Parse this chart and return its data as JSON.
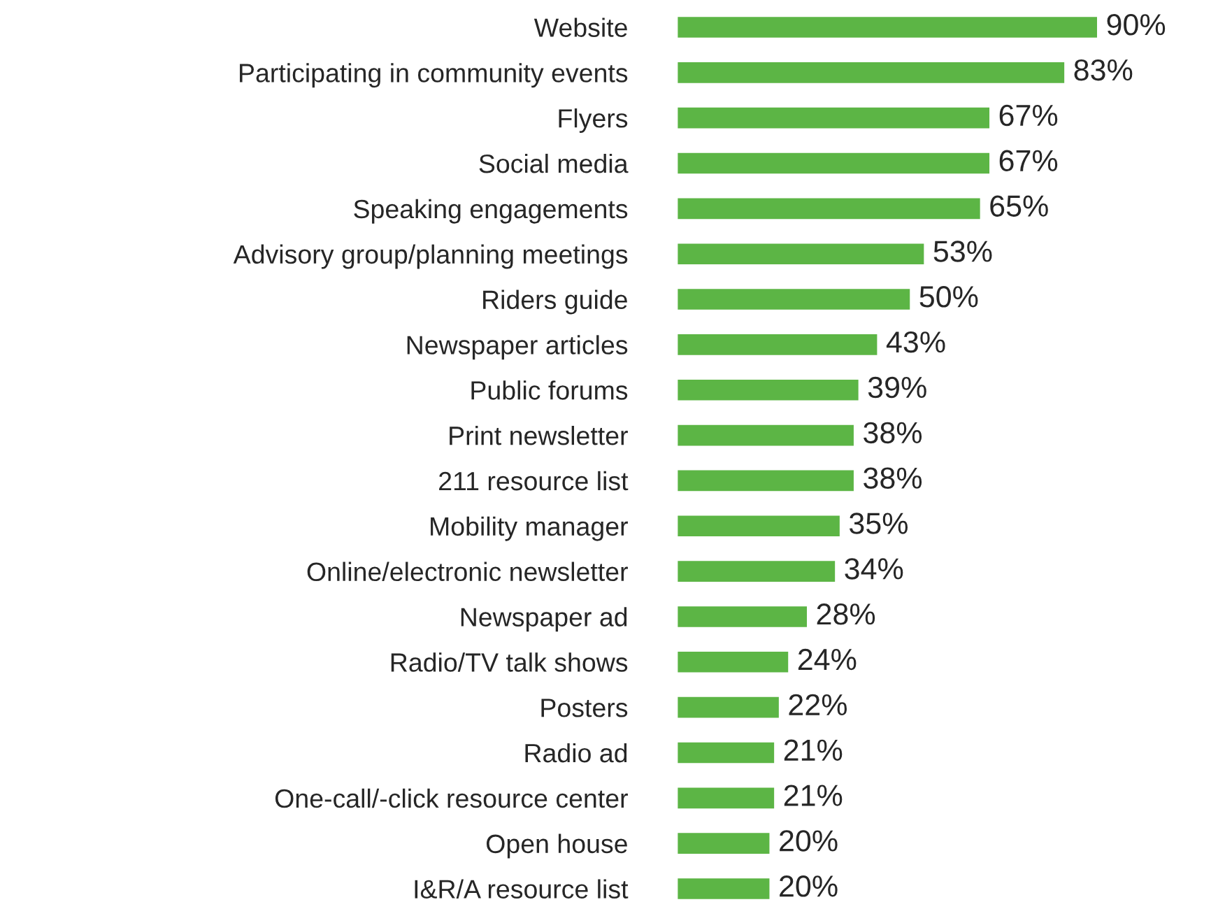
{
  "chart_data": {
    "type": "bar",
    "orientation": "horizontal",
    "categories": [
      "Website",
      "Participating in community events",
      "Flyers",
      "Social media",
      "Speaking engagements",
      "Advisory group/planning meetings",
      "Riders guide",
      "Newspaper articles",
      "Public forums",
      "Print newsletter",
      "211 resource list",
      "Mobility manager",
      "Online/electronic newsletter",
      "Newspaper ad",
      "Radio/TV talk shows",
      "Posters",
      "Radio ad",
      "One-call/-click resource center",
      "Open house",
      "I&R/A resource list"
    ],
    "values": [
      90,
      83,
      67,
      67,
      65,
      53,
      50,
      43,
      39,
      38,
      38,
      35,
      34,
      28,
      24,
      22,
      21,
      21,
      20,
      20
    ],
    "value_labels": [
      "90%",
      "83%",
      "67%",
      "67%",
      "65%",
      "53%",
      "50%",
      "43%",
      "39%",
      "38%",
      "38%",
      "35%",
      "34%",
      "28%",
      "24%",
      "22%",
      "21%",
      "21%",
      "20%",
      "20%"
    ],
    "color": "#5cb545"
  }
}
